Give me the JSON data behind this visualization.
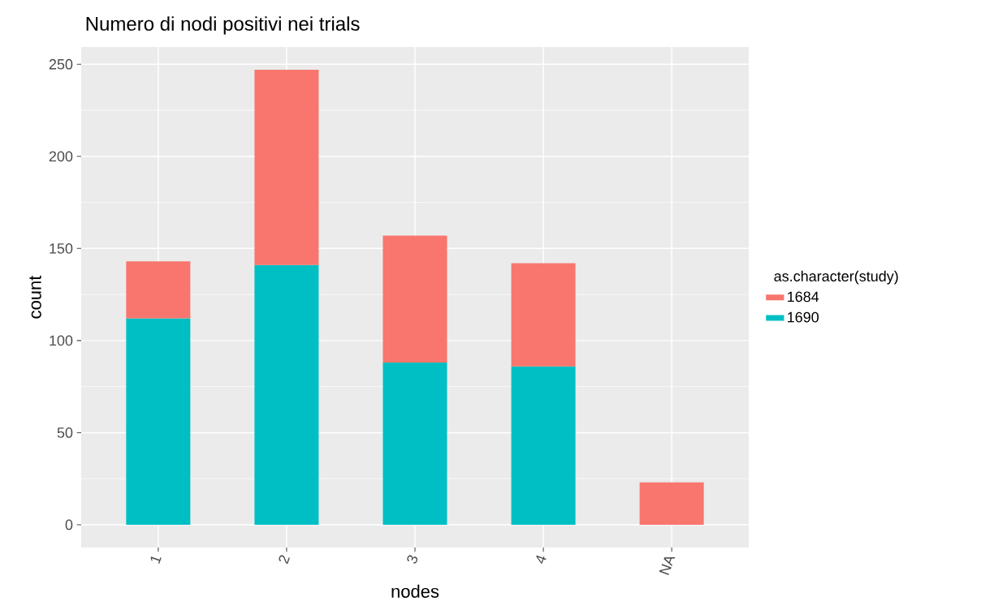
{
  "chart_data": {
    "type": "bar",
    "title": "Numero di nodi positivi nei trials",
    "xlabel": "nodes",
    "ylabel": "count",
    "legend_title": "as.character(study)",
    "categories": [
      "1",
      "2",
      "3",
      "4",
      "NA"
    ],
    "stacked": true,
    "series": [
      {
        "name": "1690",
        "color": "#00bfc4",
        "values": [
          112,
          141,
          88,
          86,
          null
        ]
      },
      {
        "name": "1684",
        "color": "#f8766d",
        "values": [
          31,
          106,
          69,
          56,
          23
        ]
      }
    ],
    "ylim": [
      -12.35,
      259.35
    ],
    "yticks": [
      0,
      50,
      100,
      150,
      200,
      250
    ],
    "grid": true,
    "legend": "right"
  }
}
